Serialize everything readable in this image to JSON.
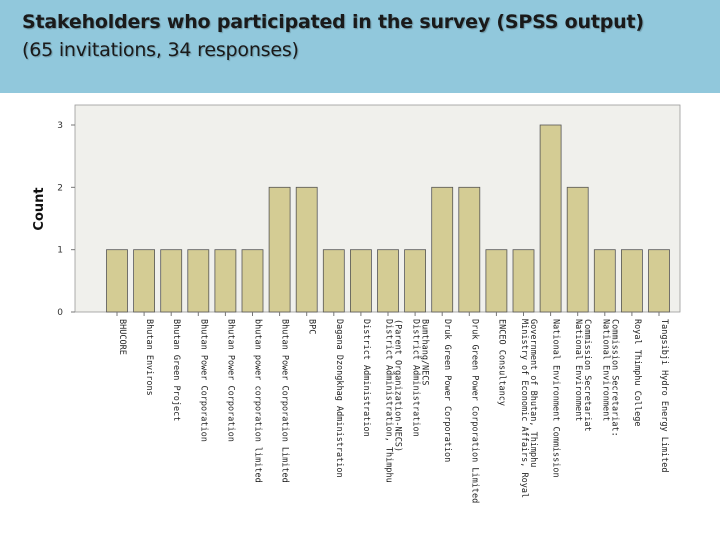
{
  "header": {
    "title": "Stakeholders who participated in the survey (SPSS output)",
    "subtitle": "(65 invitations, 34 responses)"
  },
  "colors": {
    "header_bg": "#91c8dc",
    "plot_bg": "#f0f0ec",
    "bar_fill": "#d4cc94",
    "bar_stroke": "#555555"
  },
  "chart_data": {
    "type": "bar",
    "title": "",
    "xlabel": "",
    "ylabel": "Count",
    "ylim": [
      0,
      3
    ],
    "yticks": [
      "0",
      "1",
      "2",
      "3"
    ],
    "grid": false,
    "categories": [
      "BHUCORE",
      "Bhutan Environs",
      "Bhutan Green Project",
      "Bhutan Power Corporation",
      "Bhutan Power Corporation",
      "bhutan power corporation limited",
      "Bhutan Power Corporation Limited",
      "BPC",
      "Dagana Dzongkhag Administration",
      "District Administration",
      "District Administration, Thimphu (Parent Organization-NECS)",
      "District Administration Bumthang/NECS",
      "Druk Green Power Corporation",
      "Druk Green Power Corporation Limited",
      "ENCEO Consultancy",
      "Ministry of Economic Affairs, Royal Government of Bhutan, Thimphu",
      "National Environment Commission",
      "National Environment Commission Secretariat",
      "National Environment Commission Secretariat:",
      "Royal Thimphu College",
      "Tangsibji Hydro Energy Limited"
    ],
    "values": [
      1,
      1,
      1,
      1,
      1,
      1,
      2,
      2,
      1,
      1,
      1,
      1,
      2,
      2,
      1,
      1,
      3,
      2,
      1,
      1,
      1
    ]
  }
}
